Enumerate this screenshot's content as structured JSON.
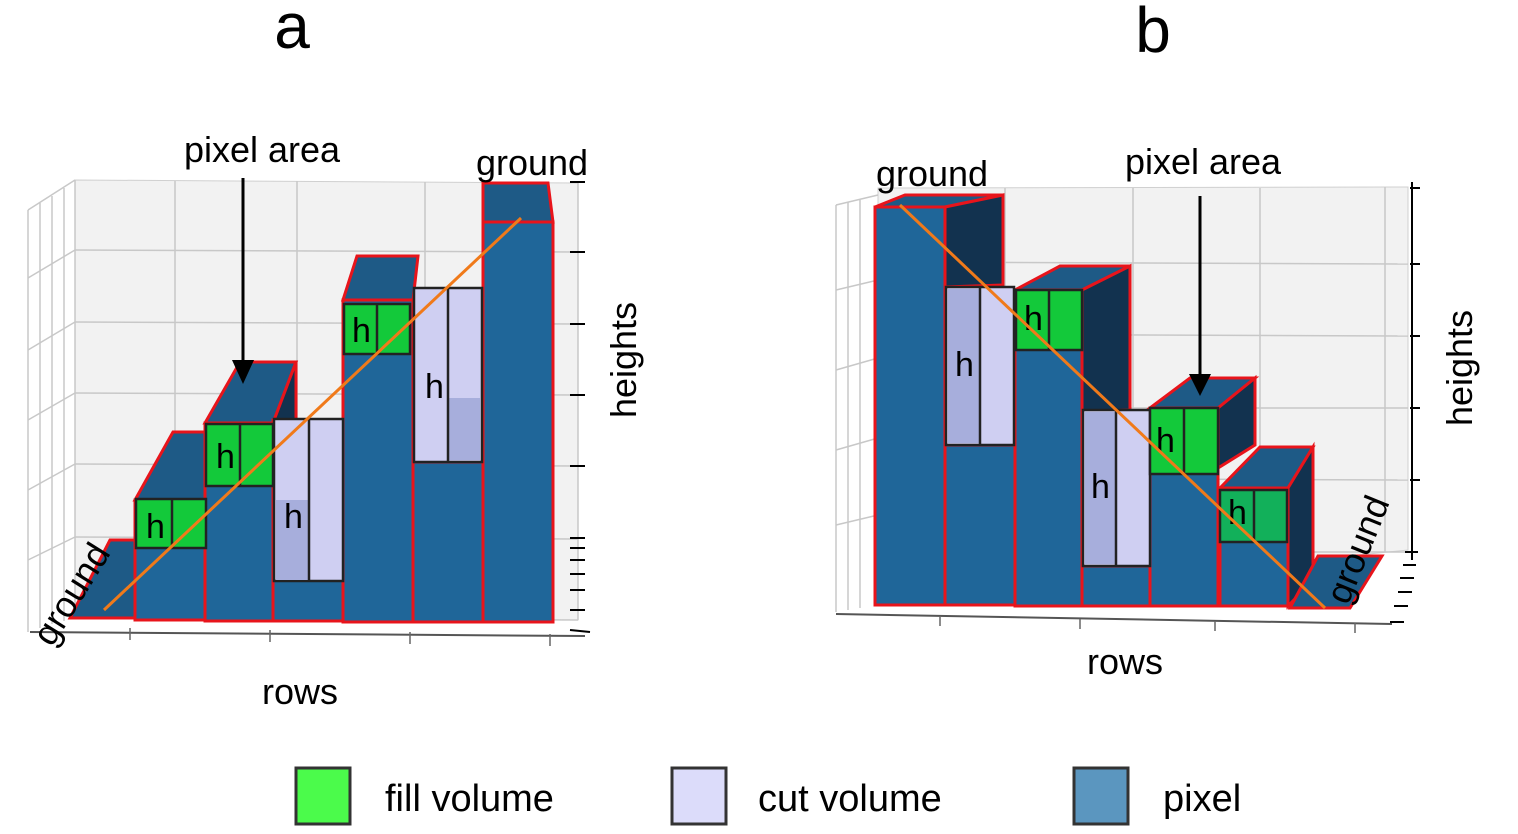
{
  "panels": {
    "a": {
      "label": "a",
      "annotation_pixel_area": "pixel area",
      "annotation_ground_left": "ground",
      "annotation_ground_right": "ground",
      "xlabel": "rows",
      "ylabel": "heights",
      "h_marks": [
        "h",
        "h",
        "h",
        "h",
        "h"
      ]
    },
    "b": {
      "label": "b",
      "annotation_pixel_area": "pixel area",
      "annotation_ground_left": "ground",
      "annotation_ground_right": "ground",
      "xlabel": "rows",
      "ylabel": "heights",
      "h_marks": [
        "h",
        "h",
        "h",
        "h",
        "h"
      ]
    }
  },
  "legend": [
    {
      "label": "fill volume",
      "color": "#4bfb4b"
    },
    {
      "label": "cut volume",
      "color": "#dcdcfa"
    },
    {
      "label": "pixel",
      "color": "#5b96bf"
    }
  ],
  "colors": {
    "pixel_face": "#1f6699",
    "pixel_outline": "#e8141b",
    "fill_volume": "#13c93a",
    "cut_volume": "#cfcff2",
    "slope_line": "#f07a1a"
  }
}
